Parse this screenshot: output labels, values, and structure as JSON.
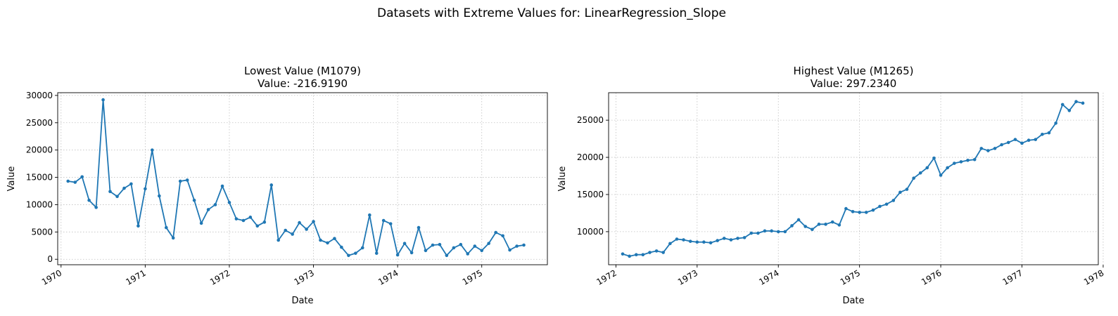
{
  "suptitle": "Datasets with Extreme Values for: LinearRegression_Slope",
  "colors": {
    "series": "#1f77b4"
  },
  "chart_data": [
    {
      "type": "line",
      "title_line1": "Lowest Value (M1079)",
      "title_line2": "Value: -216.9190",
      "xlabel": "Date",
      "ylabel": "Value",
      "grid": true,
      "xlim": [
        1969.96,
        1975.78
      ],
      "ylim": [
        -1000,
        30500
      ],
      "xticks": [
        1970,
        1971,
        1972,
        1973,
        1974,
        1975
      ],
      "xtick_labels": [
        "1970",
        "1971",
        "1972",
        "1973",
        "1974",
        "1975"
      ],
      "yticks": [
        0,
        5000,
        10000,
        15000,
        20000,
        25000,
        30000
      ],
      "ytick_labels": [
        "0",
        "5000",
        "10000",
        "15000",
        "20000",
        "25000",
        "30000"
      ],
      "x": [
        1970.083,
        1970.167,
        1970.25,
        1970.333,
        1970.417,
        1970.5,
        1970.583,
        1970.667,
        1970.75,
        1970.833,
        1970.917,
        1971.0,
        1971.083,
        1971.167,
        1971.25,
        1971.333,
        1971.417,
        1971.5,
        1971.583,
        1971.667,
        1971.75,
        1971.833,
        1971.917,
        1972.0,
        1972.083,
        1972.167,
        1972.25,
        1972.333,
        1972.417,
        1972.5,
        1972.583,
        1972.667,
        1972.75,
        1972.833,
        1972.917,
        1973.0,
        1973.083,
        1973.167,
        1973.25,
        1973.333,
        1973.417,
        1973.5,
        1973.583,
        1973.667,
        1973.75,
        1973.833,
        1973.917,
        1974.0,
        1974.083,
        1974.167,
        1974.25,
        1974.333,
        1974.417,
        1974.5,
        1974.583,
        1974.667,
        1974.75,
        1974.833,
        1974.917,
        1975.0,
        1975.083,
        1975.167,
        1975.25,
        1975.333,
        1975.417,
        1975.5
      ],
      "values": [
        14300,
        14100,
        15100,
        10800,
        9500,
        29200,
        12400,
        11500,
        13000,
        13800,
        6100,
        12900,
        20000,
        11600,
        5800,
        3900,
        14300,
        14500,
        10800,
        6600,
        9100,
        10000,
        13400,
        10400,
        7400,
        7100,
        7700,
        6100,
        6800,
        13600,
        3500,
        5300,
        4600,
        6700,
        5500,
        6900,
        3500,
        3000,
        3800,
        2200,
        700,
        1100,
        2100,
        8100,
        1100,
        7100,
        6500,
        800,
        2900,
        1200,
        5800,
        1600,
        2600,
        2700,
        700,
        2100,
        2700,
        1000,
        2400,
        1600,
        2900,
        4900,
        4300,
        1700,
        2400,
        2600
      ]
    },
    {
      "type": "line",
      "title_line1": "Highest Value (M1265)",
      "title_line2": "Value: 297.2340",
      "xlabel": "Date",
      "ylabel": "Value",
      "grid": true,
      "xlim": [
        1971.91,
        1977.94
      ],
      "ylim": [
        5550,
        28700
      ],
      "xticks": [
        1972,
        1973,
        1974,
        1975,
        1976,
        1977,
        1978
      ],
      "xtick_labels": [
        "1972",
        "1973",
        "1974",
        "1975",
        "1976",
        "1977",
        "1978"
      ],
      "yticks": [
        10000,
        15000,
        20000,
        25000
      ],
      "ytick_labels": [
        "10000",
        "15000",
        "20000",
        "25000"
      ],
      "x": [
        1972.083,
        1972.167,
        1972.25,
        1972.333,
        1972.417,
        1972.5,
        1972.583,
        1972.667,
        1972.75,
        1972.833,
        1972.917,
        1973.0,
        1973.083,
        1973.167,
        1973.25,
        1973.333,
        1973.417,
        1973.5,
        1973.583,
        1973.667,
        1973.75,
        1973.833,
        1973.917,
        1974.0,
        1974.083,
        1974.167,
        1974.25,
        1974.333,
        1974.417,
        1974.5,
        1974.583,
        1974.667,
        1974.75,
        1974.833,
        1974.917,
        1975.0,
        1975.083,
        1975.167,
        1975.25,
        1975.333,
        1975.417,
        1975.5,
        1975.583,
        1975.667,
        1975.75,
        1975.833,
        1975.917,
        1976.0,
        1976.083,
        1976.167,
        1976.25,
        1976.333,
        1976.417,
        1976.5,
        1976.583,
        1976.667,
        1976.75,
        1976.833,
        1976.917,
        1977.0,
        1977.083,
        1977.167,
        1977.25,
        1977.333,
        1977.417,
        1977.5,
        1977.583,
        1977.667,
        1977.75
      ],
      "values": [
        7000,
        6700,
        6900,
        6900,
        7200,
        7400,
        7200,
        8400,
        9000,
        8900,
        8700,
        8600,
        8600,
        8500,
        8800,
        9100,
        8900,
        9100,
        9200,
        9800,
        9800,
        10100,
        10100,
        10000,
        10000,
        10800,
        11600,
        10700,
        10300,
        11000,
        11000,
        11300,
        10900,
        13100,
        12700,
        12600,
        12600,
        12900,
        13400,
        13700,
        14200,
        15300,
        15700,
        17200,
        17900,
        18600,
        19900,
        17600,
        18600,
        19200,
        19400,
        19600,
        19700,
        21200,
        20900,
        21200,
        21700,
        22000,
        22400,
        21900,
        22300,
        22400,
        23100,
        23300,
        24600,
        27100,
        26300,
        27500,
        27300
      ]
    }
  ]
}
